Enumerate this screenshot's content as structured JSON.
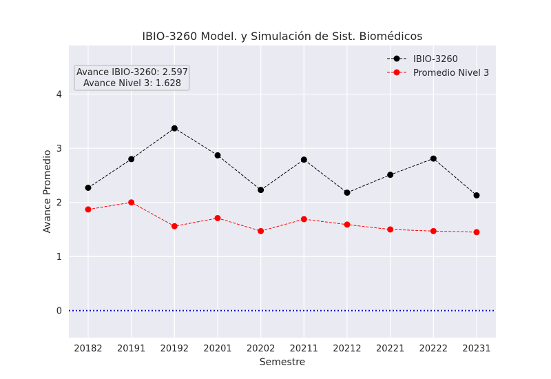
{
  "chart_data": {
    "type": "line",
    "title": "IBIO-3260 Model. y Simulación de Sist. Biomédicos",
    "xlabel": "Semestre",
    "ylabel": "Avance Promedio",
    "categories": [
      "20182",
      "20191",
      "20192",
      "20201",
      "20202",
      "20211",
      "20212",
      "20221",
      "20222",
      "20231"
    ],
    "series": [
      {
        "name": "IBIO-3260",
        "color": "#000000",
        "values": [
          2.27,
          2.8,
          3.37,
          2.87,
          2.23,
          2.79,
          2.18,
          2.51,
          2.81,
          2.13
        ]
      },
      {
        "name": "Promedio Nivel 3",
        "color": "#ff0000",
        "values": [
          1.87,
          2.0,
          1.56,
          1.71,
          1.47,
          1.69,
          1.59,
          1.5,
          1.47,
          1.45
        ]
      }
    ],
    "reference_line": {
      "y": 0,
      "color": "#0000cc",
      "style": "dotted"
    },
    "ylim": [
      -0.5,
      4.9
    ],
    "yticks": [
      0,
      1,
      2,
      3,
      4
    ],
    "grid": true,
    "legend_position": "top-right",
    "annotation": {
      "line1": "Avance IBIO-3260: 2.597",
      "line2": "Avance Nivel 3: 1.628"
    }
  }
}
